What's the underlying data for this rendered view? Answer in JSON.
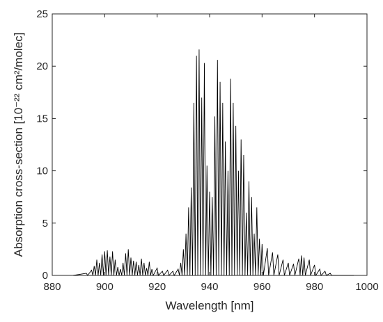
{
  "chart_data": {
    "type": "line",
    "xlabel": "Wavelength [nm]",
    "ylabel": "Absorption cross-section [10⁻²² cm²/molec]",
    "xlim": [
      880,
      1000
    ],
    "xticks": [
      880,
      900,
      920,
      940,
      960,
      980,
      1000
    ],
    "ylim": [
      0,
      25
    ],
    "yticks": [
      0,
      5,
      10,
      15,
      20,
      25
    ],
    "series": [
      {
        "color": "#000000",
        "x": [
          888,
          893,
          893.5,
          895,
          895.5,
          896,
          896.5,
          897,
          897.5,
          898,
          898.5,
          899,
          899.5,
          900,
          900.5,
          901,
          901.5,
          902,
          902.5,
          903,
          903.5,
          904,
          904.5,
          905,
          905.5,
          906,
          906.5,
          907,
          907.5,
          908,
          908.5,
          909,
          909.5,
          910,
          910.5,
          911,
          911.5,
          912,
          912.5,
          913,
          913.5,
          914,
          914.5,
          915,
          915.5,
          916,
          916.5,
          917,
          917.5,
          918,
          918.5,
          920,
          920.5,
          922,
          922.5,
          924,
          924.5,
          926,
          926.5,
          928,
          928.5,
          929,
          929.5,
          930,
          930.5,
          931,
          931.5,
          932,
          932.5,
          933,
          933.5,
          934,
          934.5,
          935,
          935.5,
          936,
          936.5,
          937,
          937.5,
          938,
          938.5,
          939,
          939.5,
          940,
          940.5,
          941,
          941.5,
          942,
          942.5,
          943,
          943.5,
          944,
          944.5,
          945,
          945.5,
          946,
          946.5,
          947,
          947.5,
          948,
          948.5,
          949,
          949.5,
          950,
          950.5,
          951,
          951.5,
          952,
          952.5,
          953,
          953.5,
          954,
          954.5,
          955,
          955.5,
          956,
          956.5,
          957,
          957.5,
          958,
          958.5,
          959,
          959.5,
          960,
          960.5,
          962,
          962.5,
          964,
          964.5,
          966,
          966.5,
          968,
          968.5,
          970,
          970.5,
          972,
          972.5,
          974,
          974.5,
          975,
          975.5,
          976,
          976.5,
          978,
          978.5,
          980,
          980.5,
          982,
          982.5,
          984,
          984.5,
          986,
          986.5,
          995
        ],
        "values": [
          0,
          0.2,
          0,
          0.5,
          0,
          0.9,
          0,
          1.5,
          0,
          1.2,
          0,
          2.0,
          0,
          2.3,
          0,
          2.4,
          0,
          1.8,
          0,
          2.3,
          0,
          1.5,
          0,
          0.8,
          0,
          0.6,
          0,
          1.2,
          0,
          2.1,
          0,
          2.5,
          0,
          1.7,
          0,
          1.4,
          0,
          1.3,
          0,
          1.0,
          0,
          1.6,
          0,
          1.2,
          0,
          0.7,
          0,
          1.3,
          0,
          0.6,
          0,
          0.7,
          0,
          0.4,
          0,
          0.5,
          0,
          0.4,
          0,
          0.6,
          0,
          1.2,
          0,
          2.5,
          0,
          4.0,
          0,
          6.5,
          0,
          8.4,
          0,
          16.5,
          0,
          21.0,
          0,
          21.6,
          0,
          17.0,
          0,
          20.3,
          0,
          10.5,
          0,
          8.0,
          0,
          7.5,
          0,
          15.2,
          0,
          20.6,
          0,
          18.5,
          0,
          16.5,
          0,
          12.8,
          0,
          10.0,
          0,
          18.8,
          0,
          16.5,
          0,
          14.3,
          0,
          10.0,
          0,
          13.0,
          0,
          11.5,
          0,
          6.0,
          0,
          9.0,
          0,
          7.5,
          0,
          4.0,
          0,
          6.5,
          0,
          3.5,
          0,
          3.0,
          0,
          2.6,
          0,
          2.2,
          0,
          2.0,
          0,
          1.5,
          0,
          1.2,
          0,
          1.1,
          0,
          1.6,
          0,
          1.9,
          0,
          1.7,
          0,
          1.5,
          0,
          1.0,
          0,
          0.6,
          0,
          0.4,
          0,
          0.2,
          0,
          0
        ]
      }
    ]
  }
}
